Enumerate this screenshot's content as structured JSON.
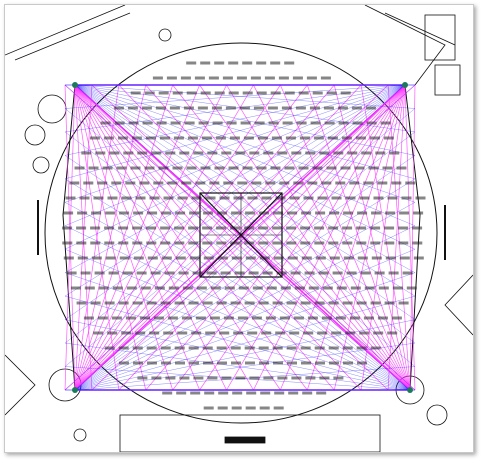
{
  "drawing": {
    "frame_label": "",
    "caption_text": "",
    "bottom_tag": "",
    "tick_rows": 24,
    "colors": {
      "light_lines": "#ff33ff",
      "dark_lines": "#1a1aff",
      "labels": "#222222",
      "wall": "#111111"
    }
  }
}
